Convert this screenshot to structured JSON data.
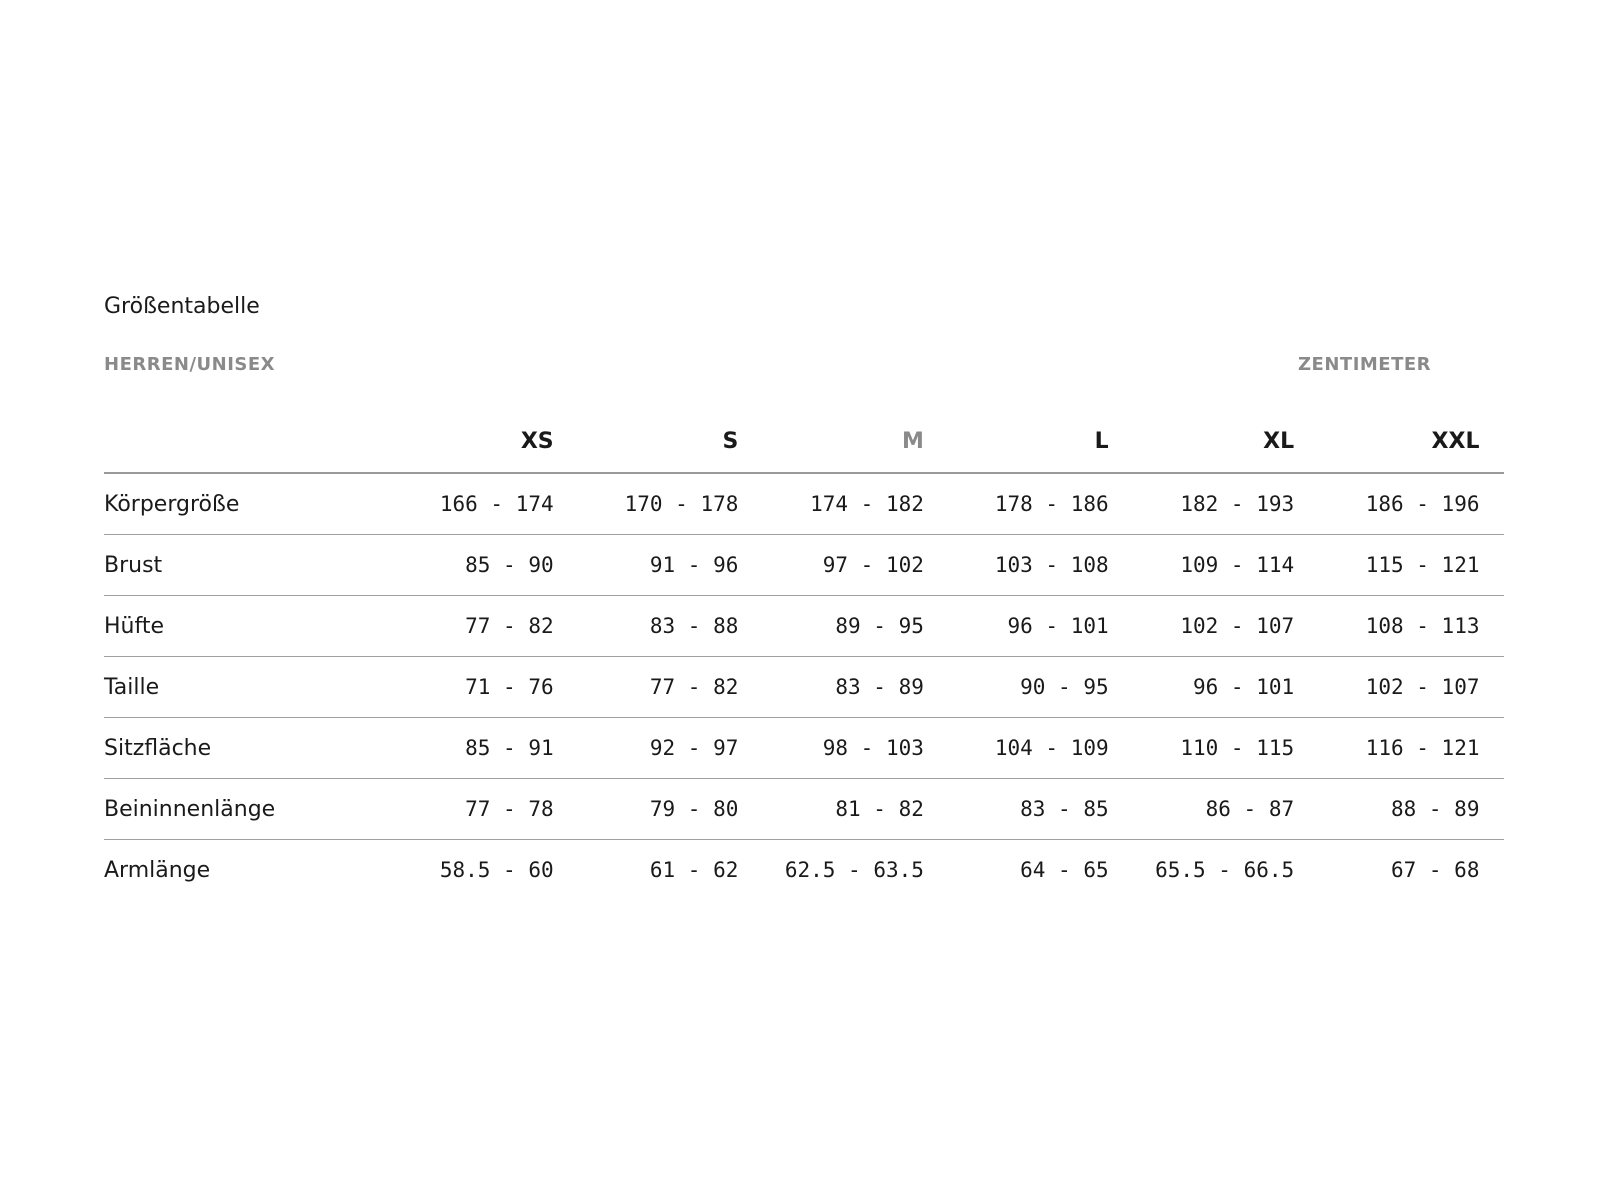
{
  "title": "Größentabelle",
  "category": "HERREN/UNISEX",
  "unit": "ZENTIMETER",
  "sizes": [
    "XS",
    "S",
    "M",
    "L",
    "XL",
    "XXL"
  ],
  "highlighted_size": "M",
  "rows": [
    {
      "label": "Körpergröße",
      "values": [
        "166 - 174",
        "170 - 178",
        "174 - 182",
        "178 - 186",
        "182 - 193",
        "186 - 196"
      ]
    },
    {
      "label": "Brust",
      "values": [
        "85 - 90",
        "91 - 96",
        "97 - 102",
        "103 - 108",
        "109 - 114",
        "115 - 121"
      ]
    },
    {
      "label": "Hüfte",
      "values": [
        "77 - 82",
        "83 - 88",
        "89 - 95",
        "96 - 101",
        "102 - 107",
        "108 - 113"
      ]
    },
    {
      "label": "Taille",
      "values": [
        "71 - 76",
        "77 - 82",
        "83 - 89",
        "90 - 95",
        "96 - 101",
        "102 - 107"
      ]
    },
    {
      "label": "Sitzfläche",
      "values": [
        "85 - 91",
        "92 - 97",
        "98 - 103",
        "104 - 109",
        "110 - 115",
        "116 - 121"
      ]
    },
    {
      "label": "Beininnenlänge",
      "values": [
        "77 - 78",
        "79 - 80",
        "81 - 82",
        "83 - 85",
        "86 - 87",
        "88 - 89"
      ]
    },
    {
      "label": "Armlänge",
      "values": [
        "58.5 - 60",
        "61 - 62",
        "62.5 - 63.5",
        "64 - 65",
        "65.5 - 66.5",
        "67 - 68"
      ]
    }
  ]
}
